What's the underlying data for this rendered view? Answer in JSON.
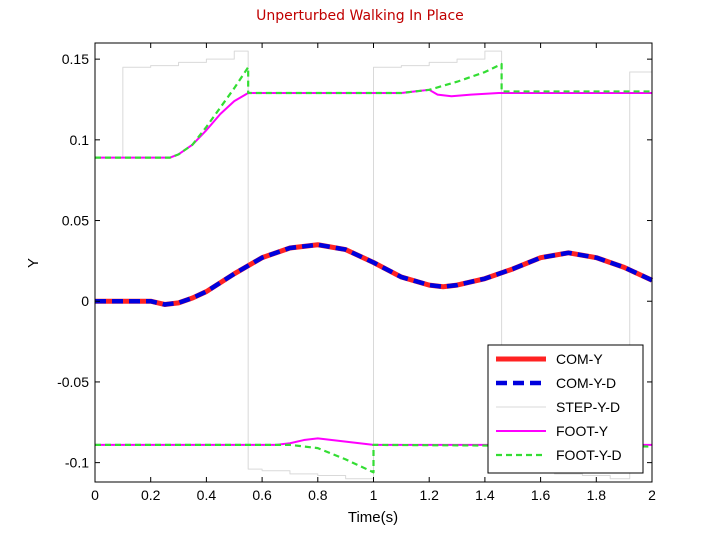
{
  "chart_data": {
    "type": "line",
    "title": "Unperturbed Walking In Place",
    "xlabel": "Time(s)",
    "ylabel": "Y",
    "xlim": [
      0,
      2
    ],
    "ylim": [
      -0.112,
      0.16
    ],
    "xticks": [
      0,
      0.2,
      0.4,
      0.6,
      0.8,
      1,
      1.2,
      1.4,
      1.6,
      1.8,
      2
    ],
    "xtick_labels": [
      "0",
      "0.2",
      "0.4",
      "0.6",
      "0.8",
      "1",
      "1.2",
      "1.4",
      "1.6",
      "1.8",
      "2"
    ],
    "yticks": [
      -0.1,
      -0.05,
      0,
      0.05,
      0.1,
      0.15
    ],
    "ytick_labels": [
      "-0.1",
      "-0.05",
      "0",
      "0.05",
      "0.1",
      "0.15"
    ],
    "grid": false,
    "legend_position": "bottom-right",
    "series": [
      {
        "name": "STEP-Y-D",
        "color": "#d9d9d9",
        "style": "solid",
        "segments": [
          {
            "x": [
              0,
              0.1,
              0.1,
              0.2,
              0.2,
              0.3,
              0.3,
              0.4,
              0.4,
              0.5,
              0.5,
              0.55,
              0.55,
              0.6,
              0.6,
              0.7,
              0.7,
              0.8,
              0.8,
              0.9,
              0.9,
              1.0,
              1.0,
              1.1,
              1.1,
              1.2,
              1.2,
              1.3,
              1.3,
              1.4,
              1.4,
              1.46,
              1.46,
              1.55,
              1.55,
              1.65,
              1.65,
              1.75,
              1.75,
              1.85,
              1.85,
              1.92,
              1.92,
              2.0
            ],
            "y": [
              0.089,
              0.089,
              0.145,
              0.145,
              0.146,
              0.146,
              0.148,
              0.148,
              0.15,
              0.15,
              0.155,
              0.155,
              -0.104,
              -0.104,
              -0.105,
              -0.105,
              -0.107,
              -0.107,
              -0.108,
              -0.108,
              -0.11,
              -0.11,
              0.145,
              0.145,
              0.146,
              0.146,
              0.148,
              0.148,
              0.15,
              0.15,
              0.155,
              0.155,
              -0.104,
              -0.104,
              -0.105,
              -0.105,
              -0.107,
              -0.107,
              -0.108,
              -0.108,
              -0.11,
              -0.11,
              0.142,
              0.142
            ]
          }
        ]
      },
      {
        "name": "FOOT-Y",
        "color": "#ff00ff",
        "style": "solid",
        "segments": [
          {
            "x": [
              0,
              0.27,
              0.3,
              0.35,
              0.4,
              0.45,
              0.5,
              0.55,
              0.6,
              1.0,
              1.1,
              1.15,
              1.2,
              1.23,
              1.28,
              1.35,
              1.45,
              2.0
            ],
            "y": [
              0.089,
              0.089,
              0.091,
              0.097,
              0.106,
              0.116,
              0.124,
              0.129,
              0.129,
              0.129,
              0.129,
              0.13,
              0.131,
              0.128,
              0.127,
              0.128,
              0.129,
              0.129
            ]
          },
          {
            "x": [
              0,
              0.6,
              0.65,
              0.7,
              0.75,
              0.8,
              0.85,
              0.9,
              0.95,
              1.0,
              2.0
            ],
            "y": [
              -0.089,
              -0.089,
              -0.089,
              -0.088,
              -0.086,
              -0.085,
              -0.086,
              -0.087,
              -0.088,
              -0.089,
              -0.089
            ]
          }
        ]
      },
      {
        "name": "FOOT-Y-D",
        "color": "#33dd33",
        "style": "dashed",
        "segments": [
          {
            "x": [
              0,
              0.27,
              0.3,
              0.35,
              0.4,
              0.45,
              0.5,
              0.55,
              0.55,
              1.0,
              1.1,
              1.2,
              1.3,
              1.4,
              1.46,
              1.46,
              2.0
            ],
            "y": [
              0.089,
              0.089,
              0.091,
              0.097,
              0.108,
              0.12,
              0.132,
              0.145,
              0.129,
              0.129,
              0.129,
              0.131,
              0.136,
              0.142,
              0.147,
              0.13,
              0.13
            ]
          },
          {
            "x": [
              0,
              0.7,
              0.8,
              0.9,
              1.0,
              1.0,
              2.0
            ],
            "y": [
              -0.089,
              -0.089,
              -0.091,
              -0.098,
              -0.106,
              -0.089,
              -0.09
            ]
          }
        ]
      },
      {
        "name": "COM-Y",
        "color": "#ff2222",
        "style": "solid",
        "segments": [
          {
            "x": [
              0,
              0.1,
              0.2,
              0.25,
              0.3,
              0.35,
              0.4,
              0.5,
              0.6,
              0.7,
              0.8,
              0.9,
              1.0,
              1.1,
              1.2,
              1.25,
              1.3,
              1.4,
              1.5,
              1.6,
              1.7,
              1.8,
              1.9,
              2.0
            ],
            "y": [
              0,
              0,
              0,
              -0.002,
              -0.001,
              0.002,
              0.006,
              0.017,
              0.027,
              0.033,
              0.035,
              0.032,
              0.024,
              0.015,
              0.01,
              0.009,
              0.01,
              0.014,
              0.02,
              0.027,
              0.03,
              0.027,
              0.021,
              0.013
            ]
          }
        ]
      },
      {
        "name": "COM-Y-D",
        "color": "#0000dd",
        "style": "dashed",
        "segments": [
          {
            "x": [
              0,
              0.1,
              0.2,
              0.25,
              0.3,
              0.35,
              0.4,
              0.5,
              0.6,
              0.7,
              0.8,
              0.9,
              1.0,
              1.1,
              1.2,
              1.25,
              1.3,
              1.4,
              1.5,
              1.6,
              1.7,
              1.8,
              1.9,
              2.0
            ],
            "y": [
              0,
              0,
              0,
              -0.002,
              -0.001,
              0.002,
              0.006,
              0.017,
              0.027,
              0.033,
              0.035,
              0.032,
              0.024,
              0.015,
              0.01,
              0.009,
              0.01,
              0.014,
              0.02,
              0.027,
              0.03,
              0.027,
              0.021,
              0.013
            ]
          }
        ]
      }
    ],
    "legend": [
      {
        "label": "COM-Y",
        "color": "#ff2222",
        "style": "solid"
      },
      {
        "label": "COM-Y-D",
        "color": "#0000dd",
        "style": "dashed"
      },
      {
        "label": "STEP-Y-D",
        "color": "#d9d9d9",
        "style": "solid"
      },
      {
        "label": "FOOT-Y",
        "color": "#ff00ff",
        "style": "solid"
      },
      {
        "label": "FOOT-Y-D",
        "color": "#33dd33",
        "style": "dashed"
      }
    ]
  }
}
